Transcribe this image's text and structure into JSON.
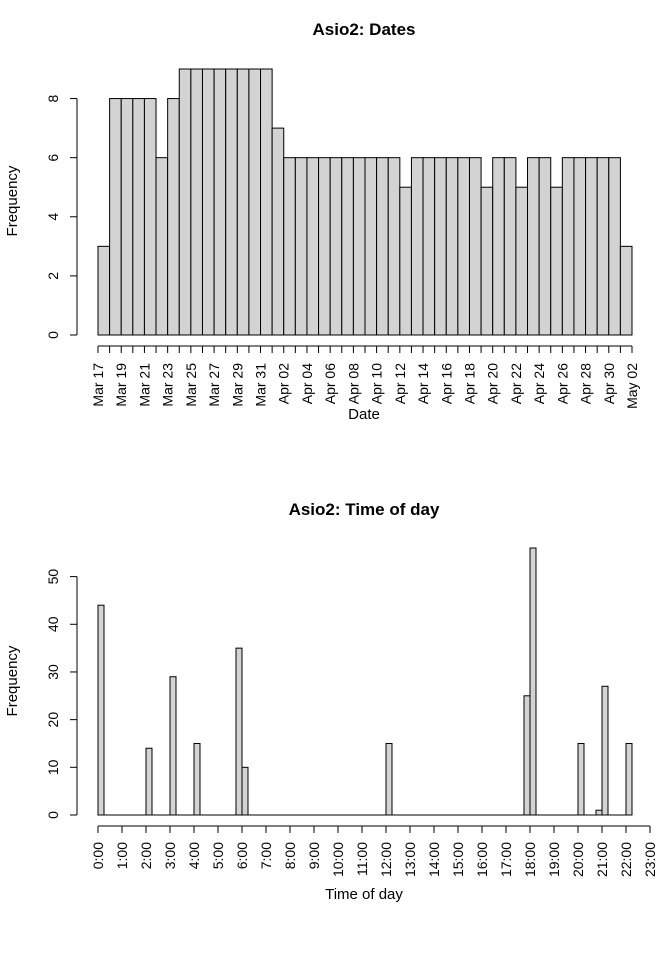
{
  "chart_data": [
    {
      "type": "bar",
      "title": "Asio2: Dates",
      "xlabel": "Date",
      "ylabel": "Frequency",
      "ylim": [
        0,
        9
      ],
      "y_ticks": [
        "0",
        "2",
        "4",
        "6",
        "8"
      ],
      "categories": [
        "Mar 17",
        "Mar 18",
        "Mar 19",
        "Mar 20",
        "Mar 21",
        "Mar 22",
        "Mar 23",
        "Mar 24",
        "Mar 25",
        "Mar 26",
        "Mar 27",
        "Mar 28",
        "Mar 29",
        "Mar 30",
        "Mar 31",
        "Apr 01",
        "Apr 02",
        "Apr 03",
        "Apr 04",
        "Apr 05",
        "Apr 06",
        "Apr 07",
        "Apr 08",
        "Apr 09",
        "Apr 10",
        "Apr 11",
        "Apr 12",
        "Apr 13",
        "Apr 14",
        "Apr 15",
        "Apr 16",
        "Apr 17",
        "Apr 18",
        "Apr 19",
        "Apr 20",
        "Apr 21",
        "Apr 22",
        "Apr 23",
        "Apr 24",
        "Apr 25",
        "Apr 26",
        "Apr 27",
        "Apr 28",
        "Apr 29",
        "Apr 30",
        "May 01"
      ],
      "values": [
        3,
        8,
        8,
        8,
        8,
        6,
        8,
        9,
        9,
        9,
        9,
        9,
        9,
        9,
        9,
        7,
        6,
        6,
        6,
        6,
        6,
        6,
        6,
        6,
        6,
        6,
        5,
        6,
        6,
        6,
        6,
        6,
        6,
        5,
        6,
        6,
        5,
        6,
        6,
        5,
        6,
        6,
        6,
        6,
        6,
        3
      ],
      "x_tick_labels": [
        "Mar 17",
        "Mar 19",
        "Mar 21",
        "Mar 23",
        "Mar 25",
        "Mar 27",
        "Mar 29",
        "Mar 31",
        "Apr 02",
        "Apr 04",
        "Apr 06",
        "Apr 08",
        "Apr 10",
        "Apr 12",
        "Apr 14",
        "Apr 16",
        "Apr 18",
        "Apr 20",
        "Apr 22",
        "Apr 24",
        "Apr 26",
        "Apr 28",
        "Apr 30",
        "May 02"
      ]
    },
    {
      "type": "bar",
      "title": "Asio2: Time of day",
      "xlabel": "Time of day",
      "ylabel": "Frequency",
      "ylim": [
        0,
        56
      ],
      "y_ticks": [
        "0",
        "10",
        "20",
        "30",
        "40",
        "50"
      ],
      "x_range_hours": [
        0,
        23
      ],
      "bin_width_hours": 0.25,
      "bins": [
        {
          "start": 0.0,
          "value": 44
        },
        {
          "start": 2.0,
          "value": 14
        },
        {
          "start": 3.0,
          "value": 29
        },
        {
          "start": 4.0,
          "value": 15
        },
        {
          "start": 5.75,
          "value": 35
        },
        {
          "start": 6.0,
          "value": 10
        },
        {
          "start": 12.0,
          "value": 15
        },
        {
          "start": 17.75,
          "value": 25
        },
        {
          "start": 18.0,
          "value": 56
        },
        {
          "start": 20.0,
          "value": 15
        },
        {
          "start": 20.75,
          "value": 1
        },
        {
          "start": 21.0,
          "value": 27
        },
        {
          "start": 22.0,
          "value": 15
        }
      ],
      "x_tick_labels": [
        "0:00",
        "1:00",
        "2:00",
        "3:00",
        "4:00",
        "5:00",
        "6:00",
        "7:00",
        "8:00",
        "9:00",
        "10:00",
        "11:00",
        "12:00",
        "13:00",
        "14:00",
        "15:00",
        "16:00",
        "17:00",
        "18:00",
        "19:00",
        "20:00",
        "21:00",
        "22:00",
        "23:00"
      ]
    }
  ]
}
